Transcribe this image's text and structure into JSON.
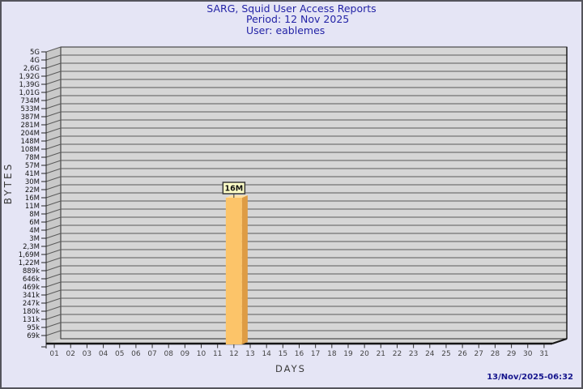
{
  "header": {
    "title": "SARG, Squid User Access Reports",
    "period": "Period: 12 Nov 2025",
    "user": "User: eablemes"
  },
  "footer": {
    "timestamp": "13/Nov/2025-06:32"
  },
  "chart_data": {
    "type": "bar",
    "title": "SARG, Squid User Access Reports",
    "xlabel": "DAYS",
    "ylabel": "BYTES",
    "x_ticks": [
      "01",
      "02",
      "03",
      "04",
      "05",
      "06",
      "07",
      "08",
      "09",
      "10",
      "11",
      "12",
      "13",
      "14",
      "15",
      "16",
      "17",
      "18",
      "19",
      "20",
      "21",
      "22",
      "23",
      "24",
      "25",
      "26",
      "27",
      "28",
      "29",
      "30",
      "31"
    ],
    "y_ticks": [
      "5G",
      "4G",
      "2,6G",
      "1,92G",
      "1,39G",
      "1,01G",
      "734M",
      "533M",
      "387M",
      "281M",
      "204M",
      "148M",
      "108M",
      "78M",
      "57M",
      "41M",
      "30M",
      "22M",
      "16M",
      "11M",
      "8M",
      "6M",
      "4M",
      "3M",
      "2,3M",
      "1,69M",
      "1,22M",
      "889k",
      "646k",
      "469k",
      "341k",
      "247k",
      "180k",
      "131k",
      "95k",
      "69k"
    ],
    "y_scale": "logarithmic",
    "grid": "horizontal",
    "legend": "none",
    "bars": [
      {
        "day": "12",
        "value": "16M"
      }
    ],
    "colors": {
      "background": "#e5e5f5",
      "title_text": "#2323a6",
      "plot_bg": "#d6d6d6",
      "wall_bg": "#c9c9c9",
      "grid_line": "#5a5a5a",
      "bar_front": "#fcc469",
      "bar_side": "#de9c44",
      "bar_top": "#fddfa0",
      "value_box_bg": "#ffffc8",
      "timestamp_text": "#15158d"
    }
  }
}
